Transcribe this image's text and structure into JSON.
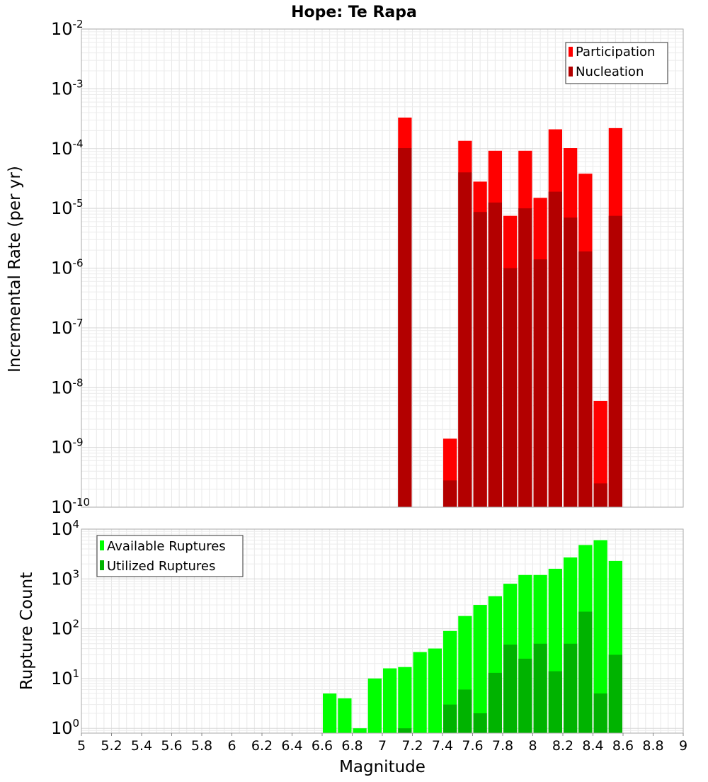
{
  "chart_data": [
    {
      "type": "bar",
      "title": "Hope: Te Rapa",
      "ylabel": "Incremental Rate (per yr)",
      "xlabel": "",
      "xlim": [
        5,
        9
      ],
      "ylim": [
        1e-10,
        0.01
      ],
      "yscale": "log",
      "grid": true,
      "legend_position": "top-right",
      "y_tick_exponents": [
        "-2",
        "-3",
        "-4",
        "-5",
        "-6",
        "-7",
        "-8",
        "-9",
        "-10"
      ],
      "y_tick_base": "10",
      "x": [
        7.15,
        7.45,
        7.55,
        7.65,
        7.75,
        7.85,
        7.95,
        8.05,
        8.15,
        8.25,
        8.35,
        8.45,
        8.55
      ],
      "series": [
        {
          "name": "Participation",
          "color": "#ff0000",
          "values": [
            0.00033,
            1.4e-09,
            0.000135,
            2.8e-05,
            9.2e-05,
            7.5e-06,
            9.2e-05,
            1.5e-05,
            0.00021,
            0.000102,
            3.8e-05,
            6e-09,
            0.00022
          ]
        },
        {
          "name": "Nucleation",
          "color": "#b30000",
          "values": [
            0.000102,
            2.8e-10,
            4e-05,
            8.7e-06,
            1.25e-05,
            1e-06,
            1e-05,
            1.4e-06,
            1.9e-05,
            7e-06,
            1.9e-06,
            2.5e-10,
            7.5e-06
          ]
        }
      ]
    },
    {
      "type": "bar",
      "title": "",
      "ylabel": "Rupture Count",
      "xlabel": "Magnitude",
      "xlim": [
        5,
        9
      ],
      "ylim": [
        0.8,
        10000
      ],
      "yscale": "log",
      "grid": true,
      "legend_position": "top-left",
      "y_tick_exponents": [
        "4",
        "3",
        "2",
        "1",
        "0"
      ],
      "y_tick_base": "10",
      "x_tick_labels": [
        "5",
        "5.2",
        "5.4",
        "5.6",
        "5.8",
        "6",
        "6.2",
        "6.4",
        "6.6",
        "6.8",
        "7",
        "7.2",
        "7.4",
        "7.6",
        "7.8",
        "8",
        "8.2",
        "8.4",
        "8.6",
        "8.8",
        "9"
      ],
      "x": [
        6.65,
        6.75,
        6.85,
        6.95,
        7.05,
        7.15,
        7.25,
        7.35,
        7.45,
        7.55,
        7.65,
        7.75,
        7.85,
        7.95,
        8.05,
        8.15,
        8.25,
        8.35,
        8.45,
        8.55
      ],
      "series": [
        {
          "name": "Available Ruptures",
          "color": "#00ff00",
          "values": [
            5,
            4,
            1,
            10,
            16,
            17,
            34,
            40,
            90,
            180,
            300,
            450,
            800,
            1200,
            1200,
            1600,
            2700,
            4800,
            6000,
            2300
          ]
        },
        {
          "name": "Utilized Ruptures",
          "color": "#00b300",
          "values": [
            0,
            0,
            0,
            0,
            0,
            1,
            0,
            0,
            3,
            6,
            2,
            13,
            48,
            25,
            50,
            14,
            50,
            220,
            5,
            30
          ]
        }
      ]
    }
  ]
}
